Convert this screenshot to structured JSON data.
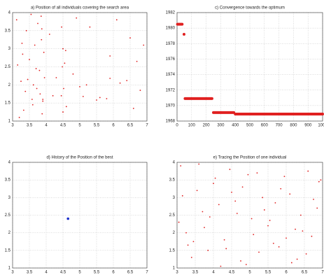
{
  "chart_data": [
    {
      "type": "scatter",
      "title": "a) Position of all individuals covering the search area",
      "color": "#e02020",
      "grid": true,
      "xlim": [
        3,
        7
      ],
      "xticks": [
        3,
        3.5,
        4,
        4.5,
        5,
        5.5,
        6,
        6.5,
        7
      ],
      "ylim": [
        1,
        4
      ],
      "yticks": [
        1,
        1.5,
        2,
        2.5,
        3,
        3.5,
        4
      ],
      "x": [
        3.12,
        3.25,
        3.33,
        3.41,
        3.5,
        3.58,
        3.66,
        3.72,
        3.8,
        3.85,
        3.88,
        3.93,
        4.1,
        4.3,
        4.45,
        4.5,
        4.55,
        4.6,
        5.0,
        5.3,
        5.6,
        5.9,
        6.2,
        6.5,
        6.8,
        3.2,
        3.45,
        3.75,
        3.9,
        4.48,
        5.2,
        5.8,
        6.4,
        6.9,
        4.2,
        4.8,
        3.3,
        3.6,
        3.86,
        4.52,
        3.15,
        3.55,
        3.82,
        3.95,
        4.46,
        5.5,
        6.1,
        6.7,
        3.38,
        3.7,
        3.87,
        4.58,
        5.1,
        5.9,
        6.6,
        3.28,
        3.62,
        3.9,
        4.5,
        4.9
      ],
      "values": [
        3.8,
        2.1,
        1.3,
        3.5,
        2.7,
        1.6,
        3.1,
        1.9,
        2.4,
        3.9,
        1.2,
        2.9,
        3.4,
        2.2,
        1.7,
        3.0,
        2.6,
        1.4,
        1.95,
        3.6,
        1.65,
        2.8,
        2.05,
        3.3,
        1.85,
        1.1,
        2.15,
        3.7,
        1.55,
        2.5,
        2.0,
        1.62,
        2.12,
        3.1,
        1.7,
        2.3,
        2.85,
        1.45,
        3.25,
        1.9,
        2.55,
        3.95,
        1.75,
        2.2,
        3.6,
        1.58,
        3.8,
        2.65,
        1.82,
        2.45,
        3.55,
        2.95,
        1.68,
        2.18,
        1.35,
        3.15,
        2.0,
        1.6,
        1.25,
        3.85
      ]
    },
    {
      "type": "line",
      "title": "c) Convergence towards the optimum",
      "color": "#e02020",
      "grid": true,
      "xlim": [
        0,
        1000
      ],
      "xticks": [
        0,
        100,
        200,
        300,
        400,
        500,
        600,
        700,
        800,
        900,
        1000
      ],
      "ylim": [
        1968,
        1982
      ],
      "yticks": [
        1968,
        1970,
        1972,
        1974,
        1976,
        1978,
        1980,
        1982
      ],
      "x": [
        3,
        35,
        40,
        48,
        52,
        55,
        240,
        245,
        250,
        390,
        395,
        400,
        1000
      ],
      "values": [
        1980.5,
        1980.5,
        null,
        1979.2,
        null,
        1970.9,
        1970.9,
        null,
        1969.1,
        1969.1,
        null,
        1968.9,
        1968.9
      ]
    },
    {
      "type": "scatter",
      "title": "d) History of the Position of the best",
      "color": "#1a2ecc",
      "grid": true,
      "xlim": [
        3,
        7
      ],
      "xticks": [
        3,
        3.5,
        4,
        4.5,
        5,
        5.5,
        6,
        6.5,
        7
      ],
      "ylim": [
        1,
        4
      ],
      "yticks": [
        1,
        1.5,
        2,
        2.5,
        3,
        3.5,
        4
      ],
      "x": [
        4.65
      ],
      "values": [
        2.4
      ]
    },
    {
      "type": "scatter",
      "title": "e) Tracing the Position of one individual",
      "color": "#e02020",
      "grid": true,
      "xlim": [
        3,
        7
      ],
      "xticks": [
        3,
        3.5,
        4,
        4.5,
        5,
        5.5,
        6,
        6.5,
        7
      ],
      "ylim": [
        1,
        4
      ],
      "yticks": [
        1,
        1.5,
        2,
        2.5,
        3,
        3.5,
        4
      ],
      "x": [
        3.1,
        3.4,
        3.7,
        4.0,
        4.3,
        4.6,
        4.9,
        5.2,
        5.5,
        5.8,
        6.1,
        6.4,
        6.7,
        6.95,
        3.25,
        3.55,
        3.85,
        4.15,
        4.45,
        4.75,
        5.05,
        5.35,
        5.65,
        5.95,
        6.25,
        6.55,
        6.85,
        3.05,
        3.6,
        4.2,
        4.8,
        5.4,
        6.0,
        6.6,
        3.3,
        3.9,
        4.5,
        5.1,
        5.7,
        6.3,
        6.9,
        3.15,
        3.75,
        4.35,
        4.95,
        5.55,
        6.15,
        6.75,
        3.45,
        4.05,
        4.65,
        5.25,
        5.85,
        6.45
      ],
      "values": [
        3.9,
        1.3,
        2.6,
        3.4,
        1.8,
        2.9,
        1.1,
        3.7,
        2.2,
        1.6,
        3.1,
        2.5,
        1.9,
        3.5,
        2.0,
        3.2,
        1.5,
        2.8,
        3.8,
        1.2,
        2.4,
        3.0,
        1.7,
        3.6,
        2.1,
        1.4,
        2.7,
        2.3,
        3.95,
        1.05,
        3.3,
        2.65,
        1.85,
        3.75,
        1.65,
        2.45,
        3.15,
        1.95,
        2.85,
        1.25,
        3.45,
        3.05,
        2.15,
        1.55,
        3.65,
        2.35,
        1.15,
        2.95,
        1.75,
        3.55,
        2.55,
        1.45,
        3.25,
        2.05
      ]
    }
  ]
}
